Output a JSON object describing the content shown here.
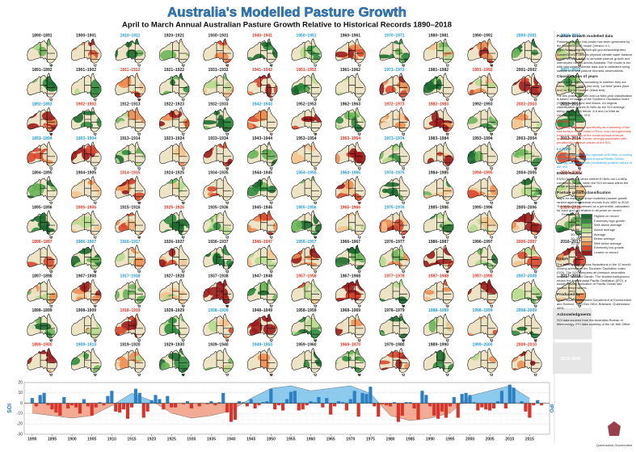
{
  "header": {
    "title": "Australia's Modelled Pasture Growth",
    "subtitle": "April to March Annual Australian Pasture Growth Relative to Historical Records 1890–2018"
  },
  "maps": {
    "cells": [
      {
        "label": "1890–1891",
        "color": "#222"
      },
      {
        "label": "1891–1892",
        "color": "#222"
      },
      {
        "label": "1892–1893",
        "color": "#1e9ad6"
      },
      {
        "label": "1893–1894",
        "color": "#1e9ad6"
      },
      {
        "label": "1894–1895",
        "color": "#222"
      },
      {
        "label": "1895–1896",
        "color": "#222"
      },
      {
        "label": "1896–1897",
        "color": "#e53222"
      },
      {
        "label": "1897–1898",
        "color": "#222"
      },
      {
        "label": "1898–1899",
        "color": "#222"
      },
      {
        "label": "1899–1900",
        "color": "#e53222"
      },
      {
        "label": "1900–1901",
        "color": "#222"
      },
      {
        "label": "1901–1902",
        "color": "#222"
      },
      {
        "label": "1902–1903",
        "color": "#e53222"
      },
      {
        "label": "1903–1904",
        "color": "#1e9ad6"
      },
      {
        "label": "1904–1905",
        "color": "#222"
      },
      {
        "label": "1905–1906",
        "color": "#e53222"
      },
      {
        "label": "1906–1907",
        "color": "#1e9ad6"
      },
      {
        "label": "1907–1908",
        "color": "#222"
      },
      {
        "label": "1908–1909",
        "color": "#222"
      },
      {
        "label": "1909–1910",
        "color": "#1e9ad6"
      },
      {
        "label": "1910–1911",
        "color": "#1e9ad6"
      },
      {
        "label": "1911–1912",
        "color": "#e53222"
      },
      {
        "label": "1912–1913",
        "color": "#222"
      },
      {
        "label": "1913–1914",
        "color": "#222"
      },
      {
        "label": "1914–1915",
        "color": "#e53222"
      },
      {
        "label": "1915–1916",
        "color": "#222"
      },
      {
        "label": "1916–1917",
        "color": "#1e9ad6"
      },
      {
        "label": "1917–1918",
        "color": "#1e9ad6"
      },
      {
        "label": "1918–1919",
        "color": "#e53222"
      },
      {
        "label": "1919–1920",
        "color": "#222"
      },
      {
        "label": "1920–1921",
        "color": "#222"
      },
      {
        "label": "1921–1922",
        "color": "#222"
      },
      {
        "label": "1922–1923",
        "color": "#222"
      },
      {
        "label": "1923–1924",
        "color": "#222"
      },
      {
        "label": "1924–1925",
        "color": "#222"
      },
      {
        "label": "1925–1926",
        "color": "#e53222"
      },
      {
        "label": "1926–1927",
        "color": "#222"
      },
      {
        "label": "1927–1928",
        "color": "#222"
      },
      {
        "label": "1928–1929",
        "color": "#222"
      },
      {
        "label": "1929–1930",
        "color": "#222"
      },
      {
        "label": "1930–1931",
        "color": "#222"
      },
      {
        "label": "1931–1932",
        "color": "#222"
      },
      {
        "label": "1932–1933",
        "color": "#222"
      },
      {
        "label": "1933–1934",
        "color": "#222"
      },
      {
        "label": "1934–1935",
        "color": "#222"
      },
      {
        "label": "1935–1936",
        "color": "#222"
      },
      {
        "label": "1936–1937",
        "color": "#222"
      },
      {
        "label": "1937–1938",
        "color": "#222"
      },
      {
        "label": "1938–1939",
        "color": "#1e9ad6"
      },
      {
        "label": "1939–1940",
        "color": "#222"
      },
      {
        "label": "1940–1941",
        "color": "#e53222"
      },
      {
        "label": "1941–1942",
        "color": "#e53222"
      },
      {
        "label": "1942–1943",
        "color": "#1e9ad6"
      },
      {
        "label": "1943–1944",
        "color": "#222"
      },
      {
        "label": "1944–1945",
        "color": "#222"
      },
      {
        "label": "1945–1946",
        "color": "#222"
      },
      {
        "label": "1946–1947",
        "color": "#e53222"
      },
      {
        "label": "1947–1948",
        "color": "#222"
      },
      {
        "label": "1948–1949",
        "color": "#222"
      },
      {
        "label": "1949–1950",
        "color": "#1e9ad6"
      },
      {
        "label": "1950–1951",
        "color": "#1e9ad6"
      },
      {
        "label": "1951–1952",
        "color": "#e53222"
      },
      {
        "label": "1952–1953",
        "color": "#222"
      },
      {
        "label": "1953–1954",
        "color": "#222"
      },
      {
        "label": "1954–1955",
        "color": "#1e9ad6"
      },
      {
        "label": "1955–1956",
        "color": "#1e9ad6"
      },
      {
        "label": "1956–1957",
        "color": "#1e9ad6"
      },
      {
        "label": "1957–1958",
        "color": "#e53222"
      },
      {
        "label": "1958–1959",
        "color": "#222"
      },
      {
        "label": "1959–1960",
        "color": "#222"
      },
      {
        "label": "1960–1961",
        "color": "#222"
      },
      {
        "label": "1961–1962",
        "color": "#222"
      },
      {
        "label": "1962–1963",
        "color": "#222"
      },
      {
        "label": "1963–1964",
        "color": "#e53222"
      },
      {
        "label": "1964–1965",
        "color": "#1e9ad6"
      },
      {
        "label": "1965–1966",
        "color": "#e53222"
      },
      {
        "label": "1966–1967",
        "color": "#222"
      },
      {
        "label": "1967–1968",
        "color": "#222"
      },
      {
        "label": "1968–1969",
        "color": "#222"
      },
      {
        "label": "1969–1970",
        "color": "#e53222"
      },
      {
        "label": "1970–1971",
        "color": "#1e9ad6"
      },
      {
        "label": "1971–1972",
        "color": "#1e9ad6"
      },
      {
        "label": "1972–1973",
        "color": "#e53222"
      },
      {
        "label": "1973–1974",
        "color": "#1e9ad6"
      },
      {
        "label": "1974–1975",
        "color": "#1e9ad6"
      },
      {
        "label": "1975–1976",
        "color": "#1e9ad6"
      },
      {
        "label": "1976–1977",
        "color": "#222"
      },
      {
        "label": "1977–1978",
        "color": "#e53222"
      },
      {
        "label": "1978–1979",
        "color": "#222"
      },
      {
        "label": "1979–1980",
        "color": "#222"
      },
      {
        "label": "1980–1981",
        "color": "#222"
      },
      {
        "label": "1981–1982",
        "color": "#222"
      },
      {
        "label": "1982–1983",
        "color": "#e53222"
      },
      {
        "label": "1983–1984",
        "color": "#222"
      },
      {
        "label": "1984–1985",
        "color": "#222"
      },
      {
        "label": "1985–1986",
        "color": "#222"
      },
      {
        "label": "1986–1987",
        "color": "#222"
      },
      {
        "label": "1987–1988",
        "color": "#e53222"
      },
      {
        "label": "1988–1989",
        "color": "#1e9ad6"
      },
      {
        "label": "1989–1990",
        "color": "#222"
      },
      {
        "label": "1990–1991",
        "color": "#222"
      },
      {
        "label": "1991–1992",
        "color": "#e53222"
      },
      {
        "label": "1992–1993",
        "color": "#222"
      },
      {
        "label": "1993–1994",
        "color": "#222"
      },
      {
        "label": "1994–1995",
        "color": "#e53222"
      },
      {
        "label": "1995–1996",
        "color": "#222"
      },
      {
        "label": "1996–1997",
        "color": "#222"
      },
      {
        "label": "1997–1998",
        "color": "#e53222"
      },
      {
        "label": "1998–1999",
        "color": "#1e9ad6"
      },
      {
        "label": "1999–2000",
        "color": "#1e9ad6"
      },
      {
        "label": "2000–2001",
        "color": "#1e9ad6"
      },
      {
        "label": "2001–2002",
        "color": "#222"
      },
      {
        "label": "2002–2003",
        "color": "#e53222"
      },
      {
        "label": "2003–2004",
        "color": "#222"
      },
      {
        "label": "2004–2005",
        "color": "#222"
      },
      {
        "label": "2005–2006",
        "color": "#222"
      },
      {
        "label": "2006–2007",
        "color": "#e53222"
      },
      {
        "label": "2007–2008",
        "color": "#1e9ad6"
      },
      {
        "label": "2008–2009",
        "color": "#1e9ad6"
      },
      {
        "label": "2009–2010",
        "color": "#e53222"
      },
      {
        "label": "2010–2011",
        "color": "#1e9ad6"
      },
      {
        "label": "2011–2012",
        "color": "#1e9ad6"
      },
      {
        "label": "2012–2013",
        "color": "#222"
      },
      {
        "label": "2013–2014",
        "color": "#222"
      },
      {
        "label": "2014–2015",
        "color": "#e53222"
      },
      {
        "label": "2015–2016",
        "color": "#e53222"
      },
      {
        "label": "2016–2017",
        "color": "#222"
      },
      {
        "label": "2017–2018",
        "color": "#222"
      }
    ],
    "empty_cells": [
      "2018–2019",
      "2019–2020"
    ]
  },
  "sidebar": {
    "sections": [
      {
        "heading": "Pasture Growth modelled data",
        "paragraphs": [
          "Pasture growth in this poster has been generated by the AussieGRASS model (Version 4.1; https://www.longpaddock.qld.gov.au/aussiegrass).",
          "AussieGRASS uses its physical climate water balance model with the ability to simulate pasture growth and intercepted rainfall across Australia. The model is run with interpolated climate data and is calibrated using satellite and field pasture biomass observations."
        ]
      },
      {
        "heading": "Classification of years",
        "paragraphs": [
          "Years are classified according to whether they are either 'El Niño' years (red text), 'La Niña' years (blue text) or 'ENSO Neutral' (black text).",
          "For this poster, El Niño and La Niña year classification is based on values of the Southern Oscillation Index (SOI) between June and March. An original classification defines El Niño as the SOI average being consistently below -5.5 and La Niña as consistently above +5.5."
        ]
      },
      {
        "heading": "El Niño",
        "color": "#e53222",
        "paragraphs": [
          "Originally referred to specifically as a warming of the sea surface off the coast of Peru, now used generally when the warming of the ocean surface extends across the Pacific Ocean, strongly associated with persistently negative values of the SOI."
        ]
      },
      {
        "heading": "La Niña",
        "color": "#1e9ad6",
        "paragraphs": [
          "Now used to refer to the opposite of El Niño, a cooling of the central and eastern tropical Pacific Ocean, strongly associated with persistently positive values of the SOI."
        ]
      },
      {
        "heading": "ENSO Neutral",
        "paragraphs": [
          "ENSO Neutral is when neither El Niño nor La Niña conditions prevail, when the SOI remains within the range of normal variation."
        ]
      },
      {
        "heading": "Pasture growth classification",
        "paragraphs": [
          "Maps for each year show modelled pasture growth ranked against historical records from 1890 to 2018. The ranking is expressed as a percentile, calculated for each grid cell relative to all years on record."
        ],
        "legend": {
          "header": "Percentile",
          "items": [
            {
              "range": "99–100",
              "label": "Highest on record",
              "color": "#1b6a2f"
            },
            {
              "range": "90–98",
              "label": "Extremely high growth",
              "color": "#2f8c3f"
            },
            {
              "range": "80–90",
              "label": "Well above average",
              "color": "#6bb55a"
            },
            {
              "range": "70–80",
              "label": "Above average",
              "color": "#b7db8f"
            },
            {
              "range": "30–70",
              "label": "Average",
              "color": "#ede4c6"
            },
            {
              "range": "20–30",
              "label": "Below average",
              "color": "#f5c48d"
            },
            {
              "range": "10–20",
              "label": "Well below average",
              "color": "#ee8d52"
            },
            {
              "range": "2–10",
              "label": "Extremely low growth",
              "color": "#d9482c"
            },
            {
              "range": "0–1",
              "label": "Lowest on record",
              "color": "#9c1b1b"
            }
          ]
        }
      },
      {
        "heading": "Graph",
        "paragraphs": [
          "The bottom graph shows fluctuations in the 12-month moving average of the Southern Oscillation Index (SOI). The SOI compares air pressure anomalies between Tahiti and Darwin. The shaded background shows the Interdecadal Pacific Oscillation (IPO), a slower moving fluctuation of Pacific Ocean sea surface temperatures."
        ]
      },
      {
        "heading": "Produced by",
        "paragraphs": [
          "Queensland Government Department of Environment and Science, GPO Box 2454, Brisbane, Queensland 4001."
        ]
      },
      {
        "heading": "Acknowledgments",
        "paragraphs": [
          "SOI data sourced from the Australian Bureau of Meteorology. IPO data courtesy of the UK Met Office."
        ]
      }
    ]
  },
  "chart_data": {
    "type": "bar-area",
    "y_label": "SOI",
    "y2_label": "IPO",
    "xlim": [
      1888,
      2020
    ],
    "xticks": [
      1890,
      1895,
      1900,
      1905,
      1910,
      1915,
      1920,
      1925,
      1930,
      1935,
      1940,
      1945,
      1950,
      1955,
      1960,
      1965,
      1970,
      1975,
      1980,
      1985,
      1990,
      1995,
      2000,
      2005,
      2010,
      2015
    ],
    "ylim": [
      -30,
      20
    ],
    "yticks": [
      20,
      10,
      0,
      -10,
      -20,
      -30
    ],
    "y2lim": [
      -1.25,
      0.83
    ],
    "series": [
      {
        "name": "SOI",
        "type": "bar",
        "color_positive": "#2f80c2",
        "color_negative": "#d7342b",
        "x": [
          1890,
          1891,
          1892,
          1893,
          1894,
          1895,
          1896,
          1897,
          1898,
          1899,
          1900,
          1901,
          1902,
          1903,
          1904,
          1905,
          1906,
          1907,
          1908,
          1909,
          1910,
          1911,
          1912,
          1913,
          1914,
          1915,
          1916,
          1917,
          1918,
          1919,
          1920,
          1921,
          1922,
          1923,
          1924,
          1925,
          1926,
          1927,
          1928,
          1929,
          1930,
          1931,
          1932,
          1933,
          1934,
          1935,
          1936,
          1937,
          1938,
          1939,
          1940,
          1941,
          1942,
          1943,
          1944,
          1945,
          1946,
          1947,
          1948,
          1949,
          1950,
          1951,
          1952,
          1953,
          1954,
          1955,
          1956,
          1957,
          1958,
          1959,
          1960,
          1961,
          1962,
          1963,
          1964,
          1965,
          1966,
          1967,
          1968,
          1969,
          1970,
          1971,
          1972,
          1973,
          1974,
          1975,
          1976,
          1977,
          1978,
          1979,
          1980,
          1981,
          1982,
          1983,
          1984,
          1985,
          1986,
          1987,
          1988,
          1989,
          1990,
          1991,
          1992,
          1993,
          1994,
          1995,
          1996,
          1997,
          1998,
          1999,
          2000,
          2001,
          2002,
          2003,
          2004,
          2005,
          2006,
          2007,
          2008,
          2009,
          2010,
          2011,
          2012,
          2013,
          2014,
          2015,
          2016,
          2017,
          2018
        ],
        "values": [
          5,
          -3,
          8,
          10,
          -2,
          -6,
          -9,
          -12,
          6,
          -5,
          -2,
          -4,
          -10,
          4,
          -3,
          -12,
          -4,
          1,
          -2,
          7,
          12,
          -8,
          -9,
          -6,
          -15,
          -4,
          14,
          10,
          -14,
          -8,
          3,
          8,
          4,
          -6,
          7,
          -4,
          -4,
          0,
          -1,
          2,
          -5,
          0,
          -3,
          0,
          -1,
          2,
          -2,
          1,
          10,
          -9,
          -18,
          -16,
          2,
          1,
          -3,
          4,
          -5,
          -2,
          1,
          2,
          14,
          -6,
          -2,
          -7,
          4,
          11,
          12,
          -7,
          -6,
          -2,
          2,
          1,
          6,
          -4,
          5,
          -11,
          -3,
          2,
          1,
          -7,
          4,
          12,
          -13,
          10,
          9,
          16,
          -3,
          -13,
          -1,
          -2,
          -3,
          1,
          -18,
          -12,
          1,
          1,
          -5,
          -16,
          12,
          8,
          -3,
          -12,
          -15,
          -8,
          -14,
          -3,
          6,
          -14,
          9,
          10,
          8,
          1,
          -7,
          -4,
          -6,
          -7,
          -5,
          2,
          12,
          -5,
          18,
          15,
          0,
          2,
          -8,
          -14,
          -2,
          3,
          -2
        ]
      },
      {
        "name": "IPO",
        "type": "area",
        "axis": "y2",
        "color_positive": "#8ccbee",
        "color_negative": "#f3ab93",
        "x": [
          1890,
          1895,
          1900,
          1905,
          1910,
          1915,
          1920,
          1925,
          1930,
          1935,
          1940,
          1945,
          1950,
          1955,
          1960,
          1965,
          1970,
          1975,
          1980,
          1985,
          1990,
          1995,
          2000,
          2005,
          2010,
          2015
        ],
        "values": [
          -0.4,
          -0.5,
          -0.6,
          -0.5,
          -0.1,
          0.4,
          0.1,
          -0.4,
          -0.6,
          -0.5,
          -0.3,
          0.2,
          0.6,
          0.7,
          0.5,
          0.6,
          0.7,
          0.4,
          -0.5,
          -0.7,
          -0.6,
          -0.4,
          0.3,
          0.5,
          0.7,
          0.2
        ]
      }
    ]
  },
  "footer": {
    "logo_text": "Queensland Government"
  }
}
